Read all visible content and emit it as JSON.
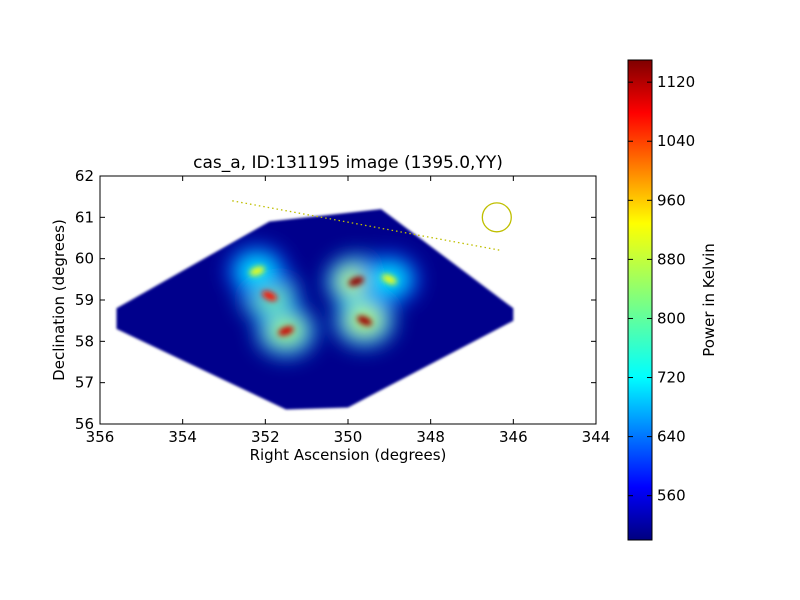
{
  "chart_data": {
    "type": "heatmap",
    "title": "cas_a, ID:131195 image (1395.0,YY)",
    "xlabel": "Right Ascension (degrees)",
    "ylabel": "Declination (degrees)",
    "xlim": [
      356,
      344
    ],
    "ylim": [
      56,
      62
    ],
    "x_ticks": [
      356,
      354,
      352,
      350,
      348,
      346,
      344
    ],
    "y_ticks": [
      56,
      57,
      58,
      59,
      60,
      61,
      62
    ],
    "grid": false,
    "colormap": "jet",
    "colorbar": {
      "label": "Power in Kelvin",
      "range": [
        500,
        1150
      ],
      "ticks": [
        560,
        640,
        720,
        800,
        880,
        960,
        1040,
        1120
      ]
    },
    "coverage_polygon": [
      {
        "ra": 355.6,
        "dec": 58.8
      },
      {
        "ra": 351.9,
        "dec": 60.9
      },
      {
        "ra": 349.2,
        "dec": 61.2
      },
      {
        "ra": 346.0,
        "dec": 58.8
      },
      {
        "ra": 346.0,
        "dec": 58.5
      },
      {
        "ra": 350.0,
        "dec": 56.4
      },
      {
        "ra": 351.5,
        "dec": 56.35
      },
      {
        "ra": 355.6,
        "dec": 58.3
      }
    ],
    "hotspots": [
      {
        "ra": 349.8,
        "dec": 59.45,
        "value": 1140
      },
      {
        "ra": 349.6,
        "dec": 58.5,
        "value": 1130
      },
      {
        "ra": 351.5,
        "dec": 58.25,
        "value": 1100
      },
      {
        "ra": 351.9,
        "dec": 59.1,
        "value": 1060
      },
      {
        "ra": 352.2,
        "dec": 59.7,
        "value": 900
      },
      {
        "ra": 349.0,
        "dec": 59.5,
        "value": 900
      }
    ],
    "annotations": {
      "dotted_line": [
        {
          "ra": 352.8,
          "dec": 61.4
        },
        {
          "ra": 346.3,
          "dec": 60.2
        }
      ],
      "beam_circle": {
        "ra": 346.4,
        "dec": 61.0,
        "radius_deg": 0.35
      },
      "annotation_color": "#bfbf00"
    }
  }
}
